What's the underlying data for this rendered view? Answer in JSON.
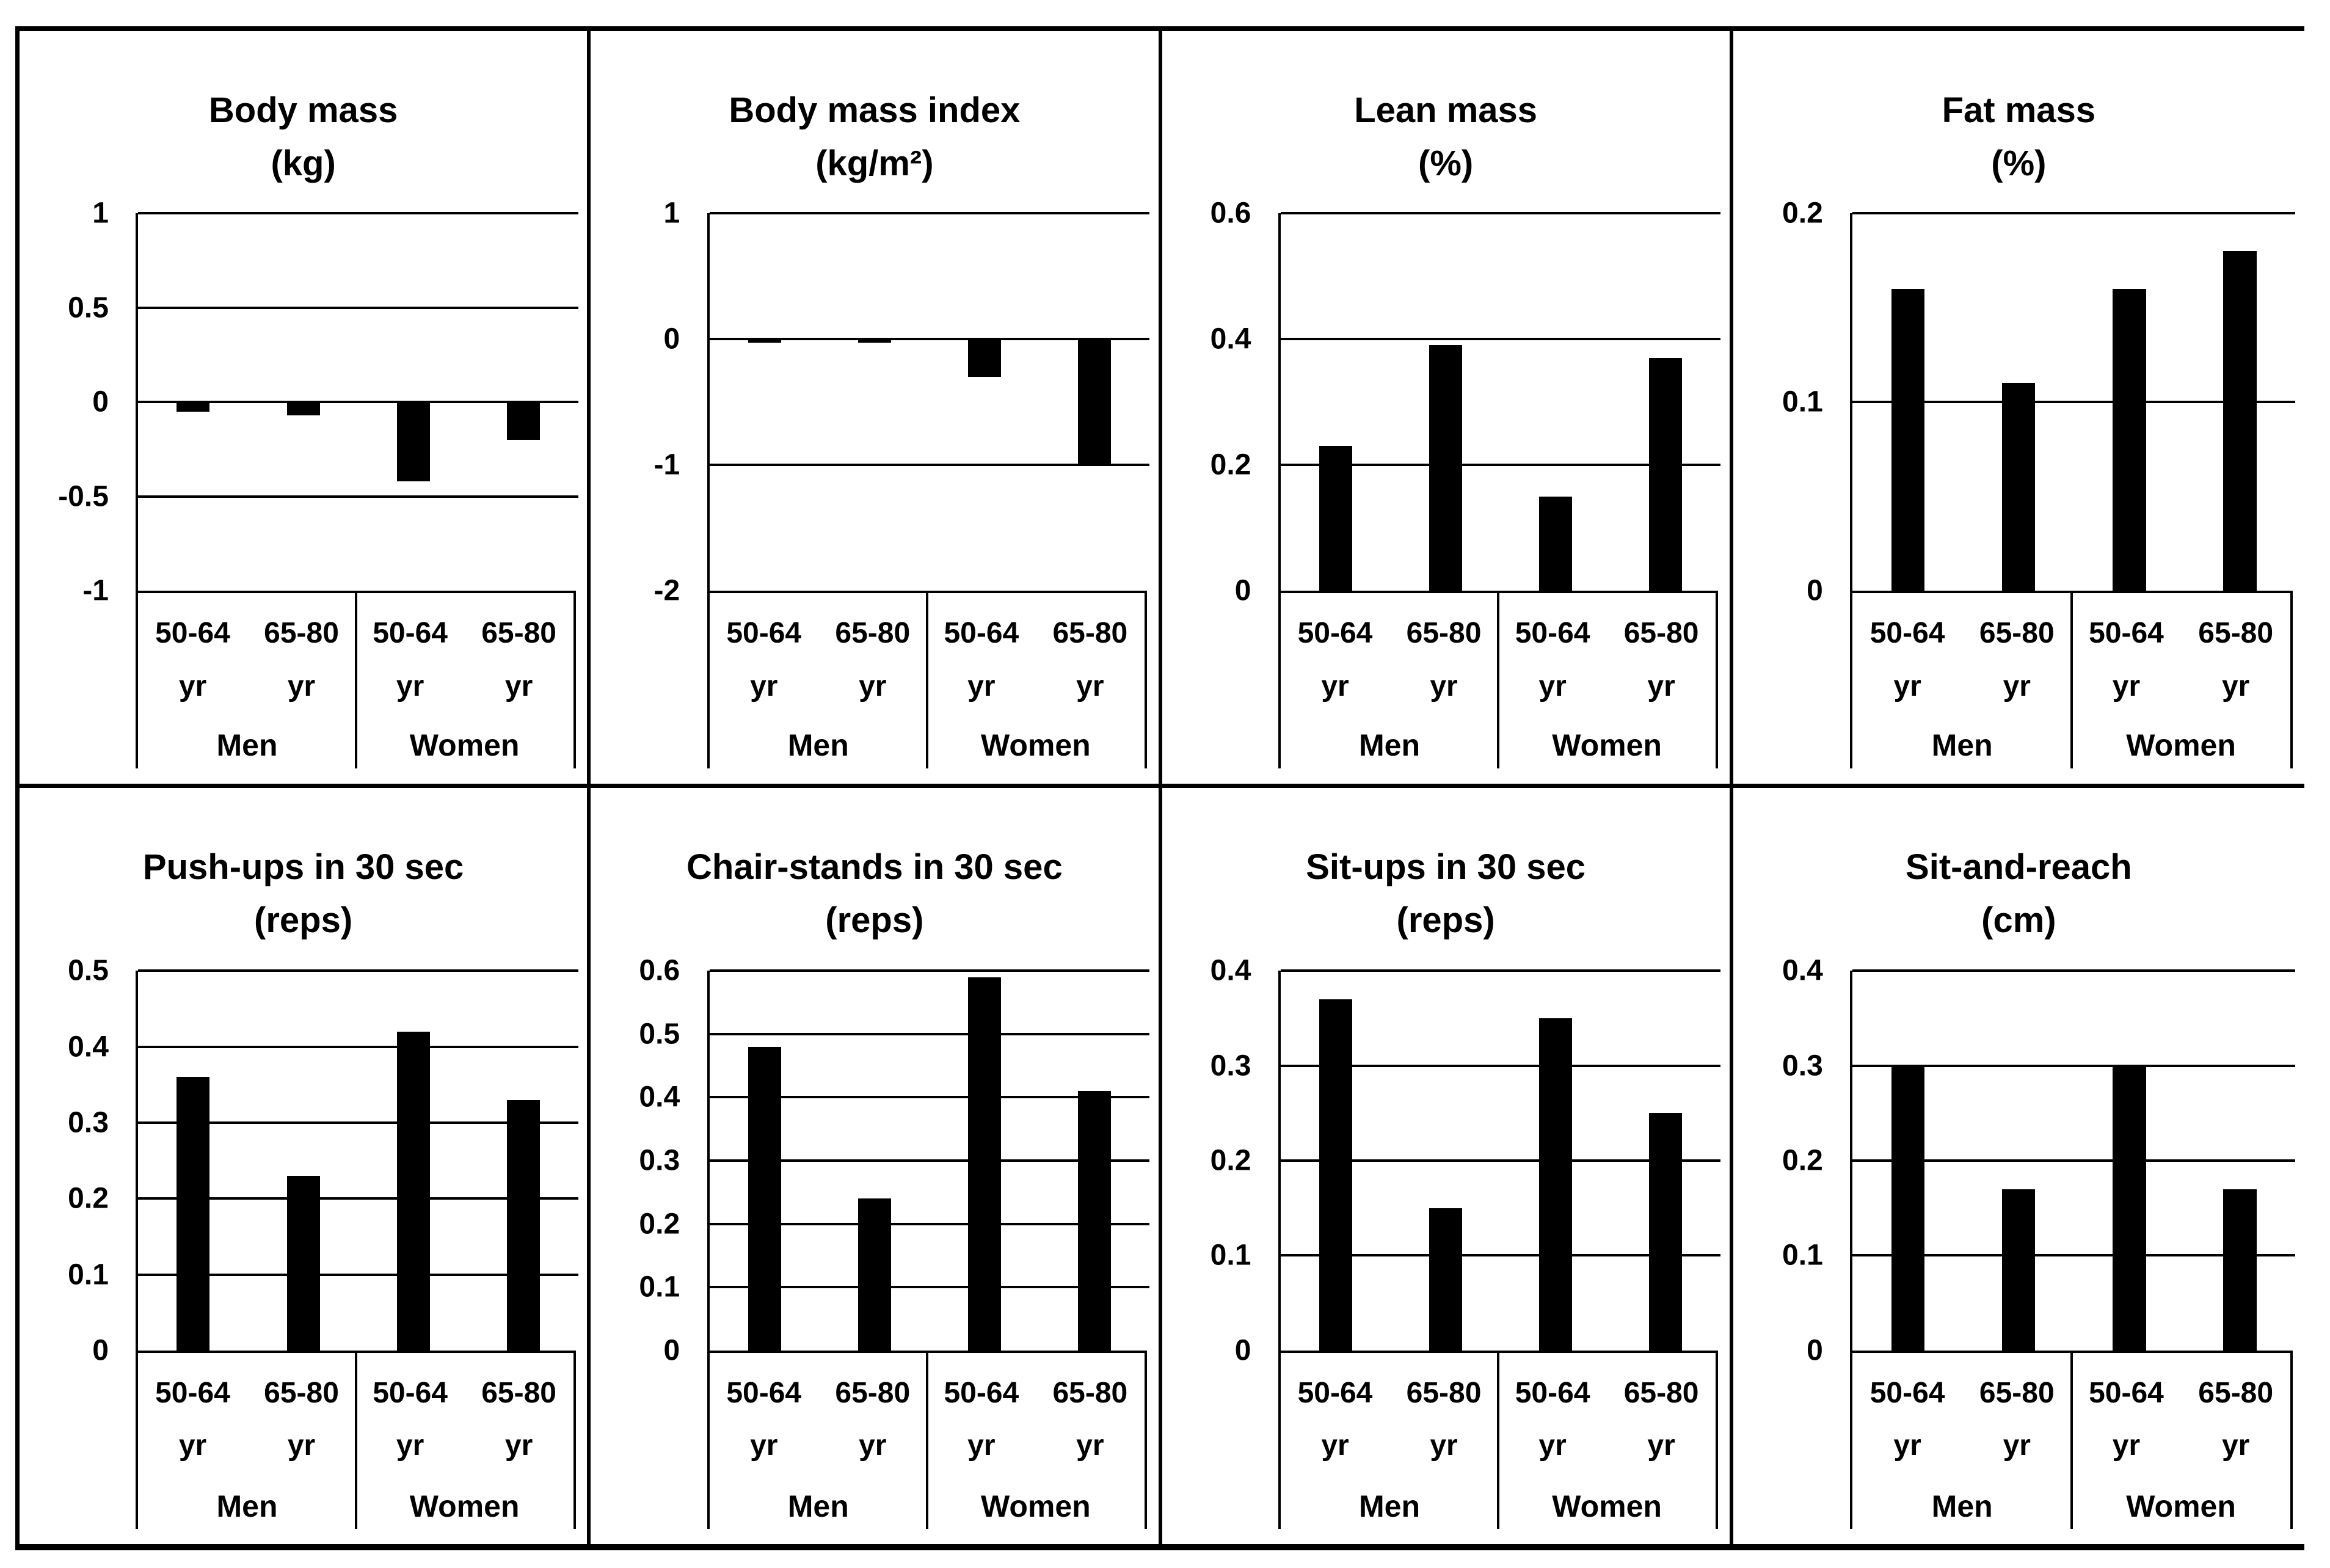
{
  "colors": {
    "bar": "#000000",
    "line": "#000000",
    "text": "#000000",
    "background": "#ffffff"
  },
  "axis": {
    "age_groups": [
      {
        "label": "50-64",
        "unit": "yr"
      },
      {
        "label": "65-80",
        "unit": "yr"
      }
    ],
    "sex_groups": [
      "Men",
      "Women"
    ]
  },
  "chart_data": [
    {
      "type": "bar",
      "title": "Body mass",
      "unit": "(kg)",
      "categories": [
        "Men 50-64 yr",
        "Men 65-80 yr",
        "Women 50-64 yr",
        "Women 65-80 yr"
      ],
      "values": [
        -0.05,
        -0.07,
        -0.42,
        -0.2
      ],
      "ylim": [
        -1,
        1
      ],
      "yticks": [
        "1",
        "0.5",
        "0",
        "-0.5",
        "-1"
      ],
      "grid": true,
      "legend": "none"
    },
    {
      "type": "bar",
      "title": "Body mass index",
      "unit": "(kg/m²)",
      "categories": [
        "Men 50-64 yr",
        "Men 65-80 yr",
        "Women 50-64 yr",
        "Women 65-80 yr"
      ],
      "values": [
        -0.03,
        -0.03,
        -0.3,
        -1.0
      ],
      "ylim": [
        -2,
        1
      ],
      "yticks": [
        "1",
        "0",
        "-1",
        "-2"
      ],
      "grid": true,
      "legend": "none"
    },
    {
      "type": "bar",
      "title": "Lean mass",
      "unit": "(%)",
      "categories": [
        "Men 50-64 yr",
        "Men 65-80 yr",
        "Women 50-64 yr",
        "Women 65-80 yr"
      ],
      "values": [
        0.23,
        0.39,
        0.15,
        0.37
      ],
      "ylim": [
        0,
        0.6
      ],
      "yticks": [
        "0.6",
        "0.4",
        "0.2",
        "0"
      ],
      "grid": true,
      "legend": "none"
    },
    {
      "type": "bar",
      "title": "Fat mass",
      "unit": "(%)",
      "categories": [
        "Men 50-64 yr",
        "Men 65-80 yr",
        "Women 50-64 yr",
        "Women 65-80 yr"
      ],
      "values": [
        0.16,
        0.11,
        0.16,
        0.18
      ],
      "ylim": [
        0,
        0.2
      ],
      "yticks": [
        "0.2",
        "0.1",
        "0"
      ],
      "grid": true,
      "legend": "none"
    },
    {
      "type": "bar",
      "title": "Push-ups in 30 sec",
      "unit": "(reps)",
      "categories": [
        "Men 50-64 yr",
        "Men 65-80 yr",
        "Women 50-64 yr",
        "Women 65-80 yr"
      ],
      "values": [
        0.36,
        0.23,
        0.42,
        0.33
      ],
      "ylim": [
        0,
        0.5
      ],
      "yticks": [
        "0.5",
        "0.4",
        "0.3",
        "0.2",
        "0.1",
        "0"
      ],
      "grid": true,
      "legend": "none"
    },
    {
      "type": "bar",
      "title": "Chair-stands in 30 sec",
      "unit": "(reps)",
      "categories": [
        "Men 50-64 yr",
        "Men 65-80 yr",
        "Women 50-64 yr",
        "Women 65-80 yr"
      ],
      "values": [
        0.48,
        0.24,
        0.59,
        0.41
      ],
      "ylim": [
        0,
        0.6
      ],
      "yticks": [
        "0.6",
        "0.5",
        "0.4",
        "0.3",
        "0.2",
        "0.1",
        "0"
      ],
      "grid": true,
      "legend": "none"
    },
    {
      "type": "bar",
      "title": "Sit-ups in 30 sec",
      "unit": "(reps)",
      "categories": [
        "Men 50-64 yr",
        "Men 65-80 yr",
        "Women 50-64 yr",
        "Women 65-80 yr"
      ],
      "values": [
        0.37,
        0.15,
        0.35,
        0.25
      ],
      "ylim": [
        0,
        0.4
      ],
      "yticks": [
        "0.4",
        "0.3",
        "0.2",
        "0.1",
        "0"
      ],
      "grid": true,
      "legend": "none"
    },
    {
      "type": "bar",
      "title": "Sit-and-reach",
      "unit": "(cm)",
      "categories": [
        "Men 50-64 yr",
        "Men 65-80 yr",
        "Women 50-64 yr",
        "Women 65-80 yr"
      ],
      "values": [
        0.3,
        0.17,
        0.3,
        0.17
      ],
      "ylim": [
        0,
        0.4
      ],
      "yticks": [
        "0.4",
        "0.3",
        "0.2",
        "0.1",
        "0"
      ],
      "grid": true,
      "legend": "none"
    }
  ]
}
